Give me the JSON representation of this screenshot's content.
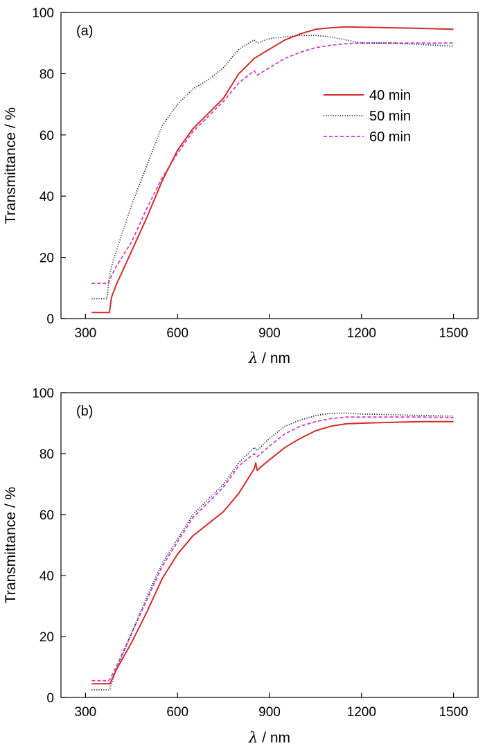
{
  "colors": {
    "40 min": "#d42a2a",
    "50 min": "#1e1e5a",
    "60 min": "#cc3ccc"
  },
  "chart_data": [
    {
      "type": "line",
      "panel_label": "(a)",
      "xlabel_symbol": "λ",
      "xlabel_unit": " / nm",
      "ylabel": "Transmittance / %",
      "xlim": [
        220,
        1580
      ],
      "ylim": [
        0,
        100
      ],
      "xticks": [
        300,
        600,
        900,
        1200,
        1500
      ],
      "yticks": [
        0,
        20,
        40,
        60,
        80,
        100
      ],
      "legend": {
        "position": "right-middle",
        "entries": [
          "40 min",
          "50 min",
          "60 min"
        ]
      },
      "series": [
        {
          "name": "40 min",
          "style": "solid",
          "points": [
            [
              320,
              2
            ],
            [
              370,
              2
            ],
            [
              378,
              2
            ],
            [
              385,
              7
            ],
            [
              400,
              11
            ],
            [
              450,
              22
            ],
            [
              500,
              33
            ],
            [
              550,
              45
            ],
            [
              600,
              55
            ],
            [
              650,
              62
            ],
            [
              700,
              67
            ],
            [
              750,
              72
            ],
            [
              800,
              80
            ],
            [
              850,
              85
            ],
            [
              900,
              88
            ],
            [
              950,
              91
            ],
            [
              1000,
              93
            ],
            [
              1050,
              94.5
            ],
            [
              1100,
              95
            ],
            [
              1150,
              95.3
            ],
            [
              1200,
              95.2
            ],
            [
              1300,
              95
            ],
            [
              1400,
              94.8
            ],
            [
              1500,
              94.5
            ]
          ]
        },
        {
          "name": "50 min",
          "style": "dotted",
          "points": [
            [
              320,
              6.5
            ],
            [
              370,
              6.5
            ],
            [
              378,
              14
            ],
            [
              390,
              19
            ],
            [
              400,
              22
            ],
            [
              450,
              37
            ],
            [
              500,
              50
            ],
            [
              550,
              63
            ],
            [
              600,
              70
            ],
            [
              650,
              75
            ],
            [
              700,
              78
            ],
            [
              750,
              82
            ],
            [
              800,
              88
            ],
            [
              850,
              91
            ],
            [
              860,
              90
            ],
            [
              900,
              91.5
            ],
            [
              950,
              92
            ],
            [
              1000,
              92.5
            ],
            [
              1050,
              92.5
            ],
            [
              1100,
              92
            ],
            [
              1150,
              91
            ],
            [
              1200,
              90
            ],
            [
              1300,
              90
            ],
            [
              1400,
              89.5
            ],
            [
              1500,
              89
            ]
          ]
        },
        {
          "name": "60 min",
          "style": "dashed",
          "points": [
            [
              320,
              11.5
            ],
            [
              375,
              11.5
            ],
            [
              380,
              13
            ],
            [
              400,
              17
            ],
            [
              450,
              25
            ],
            [
              500,
              36
            ],
            [
              550,
              46
            ],
            [
              600,
              54
            ],
            [
              650,
              61
            ],
            [
              700,
              66
            ],
            [
              750,
              71
            ],
            [
              800,
              77
            ],
            [
              850,
              81
            ],
            [
              860,
              79.5
            ],
            [
              900,
              82
            ],
            [
              950,
              85
            ],
            [
              1000,
              87
            ],
            [
              1050,
              88.5
            ],
            [
              1100,
              89.3
            ],
            [
              1150,
              89.8
            ],
            [
              1200,
              90
            ],
            [
              1300,
              90
            ],
            [
              1400,
              90
            ],
            [
              1500,
              90
            ]
          ]
        }
      ]
    },
    {
      "type": "line",
      "panel_label": "(b)",
      "xlabel_symbol": "λ",
      "xlabel_unit": " / nm",
      "ylabel": "Transmittance  / %",
      "xlim": [
        220,
        1580
      ],
      "ylim": [
        0,
        100
      ],
      "xticks": [
        300,
        600,
        900,
        1200,
        1500
      ],
      "yticks": [
        0,
        20,
        40,
        60,
        80,
        100
      ],
      "series": [
        {
          "name": "40 min",
          "style": "solid",
          "points": [
            [
              320,
              4.5
            ],
            [
              375,
              4.5
            ],
            [
              380,
              4.5
            ],
            [
              400,
              9
            ],
            [
              450,
              18
            ],
            [
              500,
              28
            ],
            [
              550,
              39
            ],
            [
              600,
              47
            ],
            [
              650,
              53
            ],
            [
              700,
              57
            ],
            [
              750,
              61
            ],
            [
              800,
              67
            ],
            [
              850,
              75
            ],
            [
              855,
              77
            ],
            [
              860,
              74.5
            ],
            [
              870,
              75.5
            ],
            [
              900,
              78
            ],
            [
              950,
              82
            ],
            [
              1000,
              85
            ],
            [
              1050,
              87.5
            ],
            [
              1100,
              89
            ],
            [
              1150,
              89.8
            ],
            [
              1200,
              90
            ],
            [
              1300,
              90.3
            ],
            [
              1400,
              90.5
            ],
            [
              1500,
              90.5
            ]
          ]
        },
        {
          "name": "50 min",
          "style": "dotted",
          "points": [
            [
              320,
              2.5
            ],
            [
              375,
              2.5
            ],
            [
              380,
              3
            ],
            [
              400,
              9
            ],
            [
              450,
              21
            ],
            [
              500,
              33
            ],
            [
              550,
              44
            ],
            [
              600,
              52
            ],
            [
              650,
              60
            ],
            [
              700,
              65
            ],
            [
              750,
              70
            ],
            [
              800,
              77
            ],
            [
              850,
              82
            ],
            [
              860,
              81
            ],
            [
              900,
              85
            ],
            [
              950,
              89
            ],
            [
              1000,
              91
            ],
            [
              1050,
              92.5
            ],
            [
              1100,
              93.2
            ],
            [
              1150,
              93.3
            ],
            [
              1200,
              93
            ],
            [
              1300,
              92.8
            ],
            [
              1400,
              92.5
            ],
            [
              1500,
              92.3
            ]
          ]
        },
        {
          "name": "60 min",
          "style": "dashed",
          "points": [
            [
              320,
              5.5
            ],
            [
              375,
              5.5
            ],
            [
              380,
              6
            ],
            [
              400,
              10
            ],
            [
              450,
              21
            ],
            [
              500,
              32
            ],
            [
              550,
              43
            ],
            [
              600,
              51
            ],
            [
              650,
              59
            ],
            [
              700,
              64
            ],
            [
              750,
              69
            ],
            [
              800,
              76
            ],
            [
              850,
              80
            ],
            [
              860,
              79
            ],
            [
              900,
              82.5
            ],
            [
              950,
              86.5
            ],
            [
              1000,
              89
            ],
            [
              1050,
              90.5
            ],
            [
              1100,
              91.5
            ],
            [
              1150,
              92
            ],
            [
              1200,
              92
            ],
            [
              1300,
              92
            ],
            [
              1400,
              92
            ],
            [
              1500,
              91.8
            ]
          ]
        }
      ]
    }
  ]
}
